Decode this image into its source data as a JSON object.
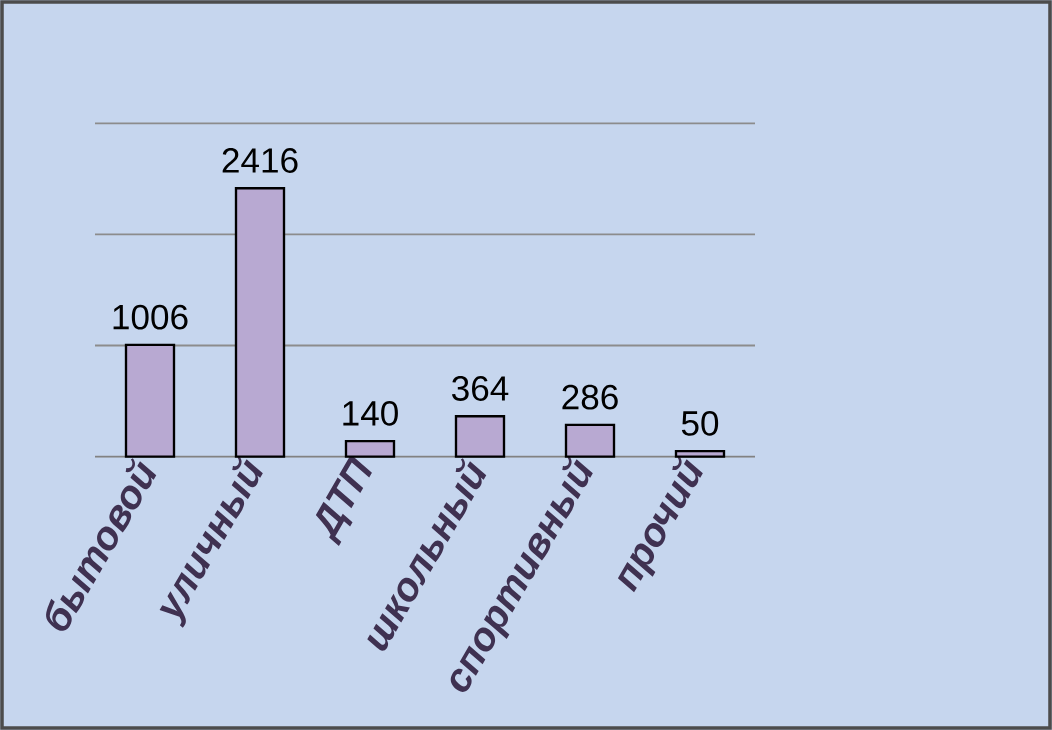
{
  "chart_data": {
    "type": "bar",
    "categories": [
      "бытовой",
      "уличный",
      "ДТП",
      "школьный",
      "спортивный",
      "прочий"
    ],
    "values": [
      1006,
      2416,
      140,
      364,
      286,
      50
    ],
    "color": "#b8a9d2",
    "ylim": [
      0,
      3000
    ],
    "yticks": [
      {
        "value": 0,
        "label": null
      },
      {
        "value": 1000,
        "label": null
      },
      {
        "value": 2000,
        "label": null
      },
      {
        "value": 3000,
        "label": null
      }
    ],
    "grid": "y",
    "tick_labels": "x",
    "data_labels": true
  }
}
